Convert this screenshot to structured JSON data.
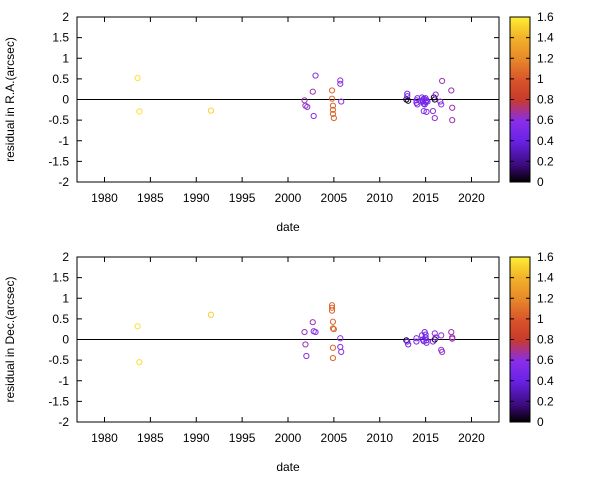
{
  "chart_data": [
    {
      "type": "scatter",
      "xlabel": "date",
      "ylabel": "residual in R.A.(arcsec)",
      "xlim": [
        1977,
        2023
      ],
      "ylim": [
        -2,
        2
      ],
      "xticks": [
        1980,
        1985,
        1990,
        1995,
        2000,
        2005,
        2010,
        2015,
        2020
      ],
      "yticks": [
        -2,
        -1.5,
        -1,
        -0.5,
        0,
        0.5,
        1,
        1.5,
        2
      ],
      "zero_line": true,
      "grid": false,
      "colorbar": {
        "min": 0,
        "max": 1.6,
        "ticks": [
          0,
          0.2,
          0.4,
          0.6,
          0.8,
          1,
          1.2,
          1.4,
          1.6
        ]
      },
      "points": [
        {
          "x": 1983.6,
          "y": 0.52,
          "c": 1.55
        },
        {
          "x": 1983.8,
          "y": -0.29,
          "c": 1.55
        },
        {
          "x": 1991.6,
          "y": -0.27,
          "c": 1.5
        },
        {
          "x": 2001.8,
          "y": -0.02,
          "c": 0.65
        },
        {
          "x": 2001.9,
          "y": -0.15,
          "c": 0.65
        },
        {
          "x": 2002.1,
          "y": -0.18,
          "c": 0.6
        },
        {
          "x": 2002.7,
          "y": 0.19,
          "c": 0.65
        },
        {
          "x": 2002.8,
          "y": -0.4,
          "c": 0.6
        },
        {
          "x": 2003.0,
          "y": 0.58,
          "c": 0.6
        },
        {
          "x": 2004.8,
          "y": 0.22,
          "c": 1.05
        },
        {
          "x": 2004.8,
          "y": 0.02,
          "c": 1.05
        },
        {
          "x": 2004.9,
          "y": -0.15,
          "c": 1.05
        },
        {
          "x": 2004.9,
          "y": -0.25,
          "c": 1.05
        },
        {
          "x": 2004.9,
          "y": -0.35,
          "c": 1.05
        },
        {
          "x": 2005.0,
          "y": -0.45,
          "c": 1.05
        },
        {
          "x": 2005.7,
          "y": 0.46,
          "c": 0.6
        },
        {
          "x": 2005.7,
          "y": 0.38,
          "c": 0.6
        },
        {
          "x": 2005.8,
          "y": -0.05,
          "c": 0.6
        },
        {
          "x": 2012.9,
          "y": 0.0,
          "c": 0.05
        },
        {
          "x": 2013.0,
          "y": 0.14,
          "c": 0.45
        },
        {
          "x": 2013.0,
          "y": 0.08,
          "c": 0.45
        },
        {
          "x": 2013.1,
          "y": -0.03,
          "c": 0.05
        },
        {
          "x": 2014.0,
          "y": -0.02,
          "c": 0.5
        },
        {
          "x": 2014.0,
          "y": -0.08,
          "c": 0.5
        },
        {
          "x": 2014.1,
          "y": 0.03,
          "c": 0.5
        },
        {
          "x": 2014.1,
          "y": -0.12,
          "c": 0.5
        },
        {
          "x": 2014.6,
          "y": 0.05,
          "c": 0.5
        },
        {
          "x": 2014.7,
          "y": -0.02,
          "c": 0.45
        },
        {
          "x": 2014.7,
          "y": -0.05,
          "c": 0.45
        },
        {
          "x": 2014.8,
          "y": 0.02,
          "c": 0.45
        },
        {
          "x": 2014.8,
          "y": -0.1,
          "c": 0.45
        },
        {
          "x": 2014.9,
          "y": -0.12,
          "c": 0.45
        },
        {
          "x": 2015.0,
          "y": 0.03,
          "c": 0.45
        },
        {
          "x": 2015.0,
          "y": -0.06,
          "c": 0.45
        },
        {
          "x": 2015.1,
          "y": -0.02,
          "c": 0.45
        },
        {
          "x": 2014.8,
          "y": -0.28,
          "c": 0.55
        },
        {
          "x": 2015.1,
          "y": -0.3,
          "c": 0.55
        },
        {
          "x": 2015.2,
          "y": -0.05,
          "c": 0.5
        },
        {
          "x": 2015.8,
          "y": -0.28,
          "c": 0.6
        },
        {
          "x": 2015.9,
          "y": 0.05,
          "c": 0.05
        },
        {
          "x": 2016.0,
          "y": 0.0,
          "c": 0.05
        },
        {
          "x": 2016.0,
          "y": -0.45,
          "c": 0.6
        },
        {
          "x": 2016.1,
          "y": 0.12,
          "c": 0.6
        },
        {
          "x": 2016.6,
          "y": -0.05,
          "c": 0.6
        },
        {
          "x": 2016.7,
          "y": -0.12,
          "c": 0.6
        },
        {
          "x": 2016.8,
          "y": 0.45,
          "c": 0.65
        },
        {
          "x": 2017.8,
          "y": 0.22,
          "c": 0.65
        },
        {
          "x": 2017.9,
          "y": -0.2,
          "c": 0.65
        },
        {
          "x": 2017.9,
          "y": -0.5,
          "c": 0.65
        }
      ]
    },
    {
      "type": "scatter",
      "xlabel": "date",
      "ylabel": "residual in Dec.(arcsec)",
      "xlim": [
        1977,
        2023
      ],
      "ylim": [
        -2,
        2
      ],
      "xticks": [
        1980,
        1985,
        1990,
        1995,
        2000,
        2005,
        2010,
        2015,
        2020
      ],
      "yticks": [
        -2,
        -1.5,
        -1,
        -0.5,
        0,
        0.5,
        1,
        1.5,
        2
      ],
      "zero_line": true,
      "grid": false,
      "colorbar": {
        "min": 0,
        "max": 1.6,
        "ticks": [
          0,
          0.2,
          0.4,
          0.6,
          0.8,
          1,
          1.2,
          1.4,
          1.6
        ]
      },
      "points": [
        {
          "x": 1983.6,
          "y": 0.32,
          "c": 1.55
        },
        {
          "x": 1983.8,
          "y": -0.55,
          "c": 1.55
        },
        {
          "x": 1991.6,
          "y": 0.6,
          "c": 1.5
        },
        {
          "x": 2001.8,
          "y": 0.18,
          "c": 0.65
        },
        {
          "x": 2001.9,
          "y": -0.12,
          "c": 0.65
        },
        {
          "x": 2002.0,
          "y": -0.4,
          "c": 0.6
        },
        {
          "x": 2002.7,
          "y": 0.42,
          "c": 0.65
        },
        {
          "x": 2002.8,
          "y": 0.2,
          "c": 0.6
        },
        {
          "x": 2003.0,
          "y": 0.18,
          "c": 0.6
        },
        {
          "x": 2004.8,
          "y": 0.83,
          "c": 1.05
        },
        {
          "x": 2004.8,
          "y": 0.77,
          "c": 1.05
        },
        {
          "x": 2004.8,
          "y": 0.7,
          "c": 1.05
        },
        {
          "x": 2004.9,
          "y": 0.43,
          "c": 1.05
        },
        {
          "x": 2004.9,
          "y": 0.27,
          "c": 1.05
        },
        {
          "x": 2005.0,
          "y": 0.25,
          "c": 1.05
        },
        {
          "x": 2004.9,
          "y": -0.2,
          "c": 1.05
        },
        {
          "x": 2004.9,
          "y": -0.45,
          "c": 1.05
        },
        {
          "x": 2005.7,
          "y": 0.03,
          "c": 0.6
        },
        {
          "x": 2005.7,
          "y": -0.18,
          "c": 0.6
        },
        {
          "x": 2005.8,
          "y": -0.3,
          "c": 0.6
        },
        {
          "x": 2012.9,
          "y": -0.02,
          "c": 0.05
        },
        {
          "x": 2013.0,
          "y": -0.05,
          "c": 0.45
        },
        {
          "x": 2013.1,
          "y": -0.12,
          "c": 0.45
        },
        {
          "x": 2014.0,
          "y": 0.03,
          "c": 0.5
        },
        {
          "x": 2014.0,
          "y": -0.05,
          "c": 0.5
        },
        {
          "x": 2014.6,
          "y": 0.1,
          "c": 0.5
        },
        {
          "x": 2014.7,
          "y": 0.0,
          "c": 0.45
        },
        {
          "x": 2014.8,
          "y": -0.04,
          "c": 0.45
        },
        {
          "x": 2014.9,
          "y": 0.18,
          "c": 0.45
        },
        {
          "x": 2015.0,
          "y": 0.12,
          "c": 0.45
        },
        {
          "x": 2015.0,
          "y": 0.05,
          "c": 0.45
        },
        {
          "x": 2015.1,
          "y": -0.02,
          "c": 0.45
        },
        {
          "x": 2015.1,
          "y": -0.08,
          "c": 0.5
        },
        {
          "x": 2015.8,
          "y": -0.05,
          "c": 0.6
        },
        {
          "x": 2016.0,
          "y": 0.0,
          "c": 0.05
        },
        {
          "x": 2016.0,
          "y": 0.15,
          "c": 0.6
        },
        {
          "x": 2016.1,
          "y": 0.05,
          "c": 0.6
        },
        {
          "x": 2016.7,
          "y": 0.1,
          "c": 0.6
        },
        {
          "x": 2016.7,
          "y": -0.25,
          "c": 0.6
        },
        {
          "x": 2016.8,
          "y": -0.3,
          "c": 0.65
        },
        {
          "x": 2017.8,
          "y": 0.18,
          "c": 0.65
        },
        {
          "x": 2017.9,
          "y": 0.05,
          "c": 0.65
        },
        {
          "x": 2017.9,
          "y": 0.02,
          "c": 0.65
        }
      ]
    }
  ]
}
